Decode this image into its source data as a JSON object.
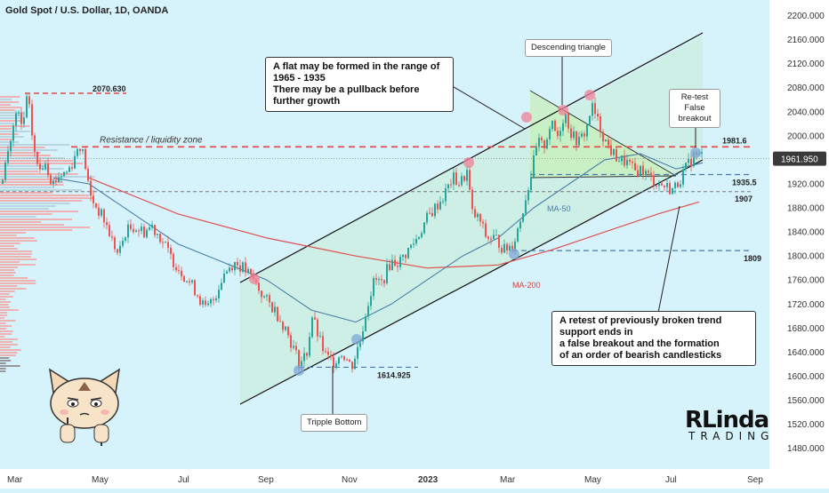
{
  "header": {
    "symbol_title": "Gold Spot / U.S. Dollar, 1D, OANDA"
  },
  "chart_data": {
    "type": "candlestick",
    "ylim": [
      1460,
      2210
    ],
    "y_ticks": [
      2200,
      2160,
      2120,
      2080,
      2040,
      2000,
      1960,
      1920,
      1880,
      1840,
      1800,
      1760,
      1720,
      1680,
      1640,
      1600,
      1560,
      1520,
      1480
    ],
    "y_tick_labels": [
      "2200.000",
      "2160.000",
      "2120.000",
      "2080.000",
      "2040.000",
      "2000.000",
      "1960.000",
      "1920.000",
      "1880.000",
      "1840.000",
      "1800.000",
      "1760.000",
      "1720.000",
      "1680.000",
      "1640.000",
      "1600.000",
      "1560.000",
      "1520.000",
      "1480.000"
    ],
    "x_ticks": [
      "Mar",
      "May",
      "Jul",
      "Sep",
      "Nov",
      "2023",
      "Mar",
      "May",
      "Jul",
      "Sep"
    ],
    "current_price": "1961.950",
    "level_labels": [
      "2070.630",
      "1981.6",
      "1935.5",
      "1907",
      "1809",
      "1614.925"
    ],
    "ma_labels": [
      "MA-50",
      "MA-200"
    ],
    "close_path": [
      [
        0,
        1920
      ],
      [
        6,
        1960
      ],
      [
        12,
        2000
      ],
      [
        18,
        2040
      ],
      [
        24,
        2010
      ],
      [
        30,
        2068
      ],
      [
        36,
        1990
      ],
      [
        42,
        1940
      ],
      [
        50,
        1960
      ],
      [
        58,
        1920
      ],
      [
        66,
        1935
      ],
      [
        74,
        1940
      ],
      [
        82,
        1960
      ],
      [
        88,
        1990
      ],
      [
        94,
        1960
      ],
      [
        100,
        1900
      ],
      [
        108,
        1880
      ],
      [
        116,
        1860
      ],
      [
        124,
        1830
      ],
      [
        132,
        1800
      ],
      [
        140,
        1840
      ],
      [
        150,
        1850
      ],
      [
        160,
        1840
      ],
      [
        170,
        1850
      ],
      [
        180,
        1830
      ],
      [
        190,
        1800
      ],
      [
        200,
        1780
      ],
      [
        210,
        1760
      ],
      [
        220,
        1740
      ],
      [
        230,
        1710
      ],
      [
        240,
        1730
      ],
      [
        250,
        1770
      ],
      [
        262,
        1790
      ],
      [
        272,
        1780
      ],
      [
        284,
        1760
      ],
      [
        296,
        1730
      ],
      [
        308,
        1710
      ],
      [
        320,
        1680
      ],
      [
        336,
        1620
      ],
      [
        344,
        1640
      ],
      [
        350,
        1700
      ],
      [
        358,
        1660
      ],
      [
        366,
        1630
      ],
      [
        374,
        1625
      ],
      [
        384,
        1640
      ],
      [
        394,
        1615
      ],
      [
        404,
        1660
      ],
      [
        412,
        1720
      ],
      [
        420,
        1760
      ],
      [
        428,
        1755
      ],
      [
        438,
        1790
      ],
      [
        448,
        1790
      ],
      [
        458,
        1810
      ],
      [
        468,
        1830
      ],
      [
        478,
        1860
      ],
      [
        488,
        1880
      ],
      [
        498,
        1900
      ],
      [
        508,
        1930
      ],
      [
        516,
        1920
      ],
      [
        524,
        1940
      ],
      [
        530,
        1870
      ],
      [
        538,
        1860
      ],
      [
        546,
        1830
      ],
      [
        556,
        1830
      ],
      [
        566,
        1810
      ],
      [
        576,
        1820
      ],
      [
        584,
        1860
      ],
      [
        592,
        1910
      ],
      [
        598,
        1950
      ],
      [
        604,
        1990
      ],
      [
        610,
        1980
      ],
      [
        618,
        2020
      ],
      [
        626,
        2000
      ],
      [
        634,
        2040
      ],
      [
        642,
        2000
      ],
      [
        650,
        1990
      ],
      [
        658,
        2010
      ],
      [
        664,
        2050
      ],
      [
        672,
        2020
      ],
      [
        680,
        1990
      ],
      [
        688,
        1970
      ],
      [
        696,
        1960
      ],
      [
        704,
        1955
      ],
      [
        712,
        1940
      ],
      [
        720,
        1945
      ],
      [
        730,
        1930
      ],
      [
        740,
        1920
      ],
      [
        748,
        1915
      ],
      [
        756,
        1910
      ],
      [
        764,
        1930
      ],
      [
        772,
        1950
      ],
      [
        780,
        1970
      ],
      [
        786,
        1965
      ],
      [
        792,
        1970
      ]
    ],
    "ma50_path": [
      [
        60,
        1930
      ],
      [
        100,
        1920
      ],
      [
        150,
        1870
      ],
      [
        200,
        1820
      ],
      [
        250,
        1790
      ],
      [
        300,
        1760
      ],
      [
        350,
        1710
      ],
      [
        400,
        1690
      ],
      [
        440,
        1720
      ],
      [
        480,
        1760
      ],
      [
        520,
        1800
      ],
      [
        560,
        1830
      ],
      [
        600,
        1880
      ],
      [
        640,
        1920
      ],
      [
        680,
        1960
      ],
      [
        720,
        1970
      ],
      [
        760,
        1945
      ],
      [
        790,
        1955
      ]
    ],
    "ma200_path": [
      [
        100,
        1930
      ],
      [
        200,
        1870
      ],
      [
        300,
        1830
      ],
      [
        400,
        1800
      ],
      [
        480,
        1780
      ],
      [
        560,
        1785
      ],
      [
        620,
        1810
      ],
      [
        680,
        1840
      ],
      [
        740,
        1870
      ],
      [
        786,
        1890
      ]
    ],
    "annotations": {
      "flat_note": [
        "A flat may be formed in the range of 1965 - 1935",
        "There may be a pullback before further growth"
      ],
      "desc_triangle": "Descending triangle",
      "retest": [
        "Re-test",
        "False breakout"
      ],
      "bearish_note": [
        "A retest of previously broken trend support ends in",
        "a false breakout and the formation",
        "of an order of bearish candlesticks"
      ],
      "resistance_zone": "Resistance / liquidity zone",
      "triple_bottom": "Tripple Bottom"
    }
  },
  "logo": {
    "line1": "RLinda",
    "line2": "TRADING"
  },
  "colors": {
    "bull": "#26a69a",
    "bear": "#ef5350",
    "ma50": "#4a7fa8",
    "ma200": "#e05050",
    "background": "#d6f2fb"
  }
}
